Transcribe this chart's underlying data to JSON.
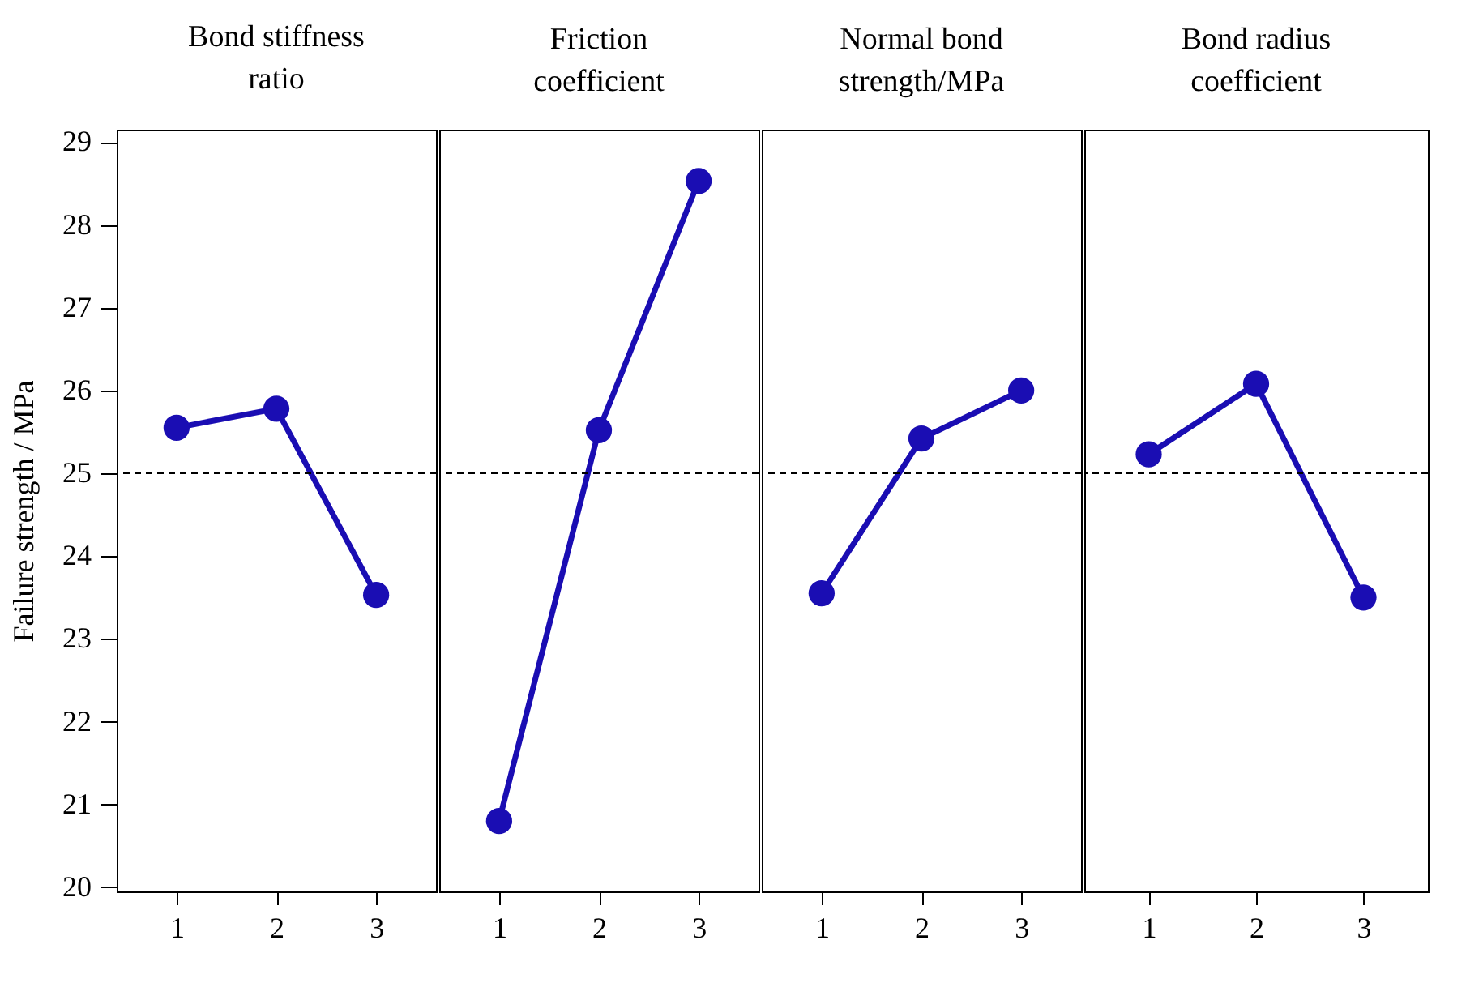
{
  "chart_data": [
    {
      "type": "line",
      "title": "Bond stiffness ratio",
      "ylabel": "Failure strength / MPa",
      "categories": [
        "1",
        "2",
        "3"
      ],
      "values": [
        25.55,
        25.78,
        23.53
      ],
      "color": "#1a0db3",
      "marker": "circle",
      "ylim": [
        19.95,
        29.15
      ],
      "yticks": [
        20,
        21,
        22,
        23,
        24,
        25,
        26,
        27,
        28,
        29
      ],
      "ref_lines": [
        {
          "axis": "y",
          "value": 25,
          "color": "#000000",
          "line_style": "dashed"
        }
      ]
    },
    {
      "type": "line",
      "title": "Friction coefficient",
      "categories": [
        "1",
        "2",
        "3"
      ],
      "values": [
        20.8,
        25.52,
        28.53
      ],
      "color": "#1a0db3",
      "marker": "circle",
      "ylim": [
        19.95,
        29.15
      ],
      "tick_labels": "x",
      "ref_lines": [
        {
          "axis": "y",
          "value": 25,
          "color": "#000000",
          "line_style": "dashed"
        }
      ]
    },
    {
      "type": "line",
      "title": "Normal bond strength/MPa",
      "categories": [
        "1",
        "2",
        "3"
      ],
      "values": [
        23.55,
        25.42,
        26.0
      ],
      "color": "#1a0db3",
      "marker": "circle",
      "ylim": [
        19.95,
        29.15
      ],
      "tick_labels": "x",
      "ref_lines": [
        {
          "axis": "y",
          "value": 25,
          "color": "#000000",
          "line_style": "dashed"
        }
      ]
    },
    {
      "type": "line",
      "title": "Bond radius coefficient",
      "categories": [
        "1",
        "2",
        "3"
      ],
      "values": [
        25.23,
        26.08,
        23.5
      ],
      "color": "#1a0db3",
      "marker": "circle",
      "ylim": [
        19.95,
        29.15
      ],
      "tick_labels": "x",
      "ref_lines": [
        {
          "axis": "y",
          "value": 25,
          "color": "#000000",
          "line_style": "dashed"
        }
      ]
    }
  ]
}
